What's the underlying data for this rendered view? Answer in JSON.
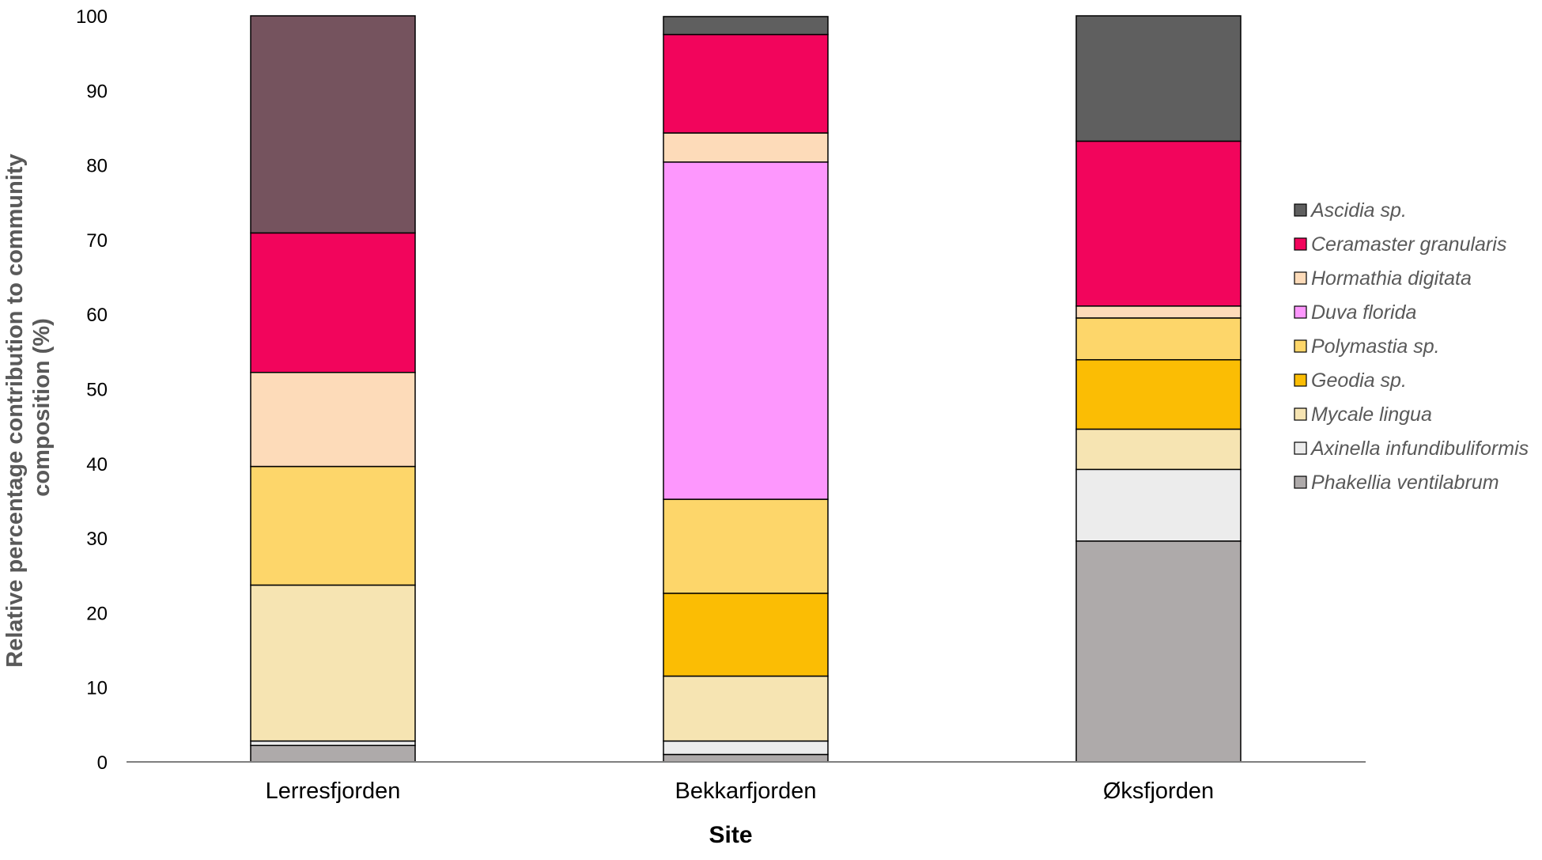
{
  "chart_data": {
    "type": "bar",
    "stacked": true,
    "title": "",
    "xlabel": "Site",
    "ylabel": "Relative percentage contribution to community composition (%)",
    "ylabel_lines": [
      "Relative percentage contribution to community",
      "composition (%)"
    ],
    "ylim": [
      0,
      100
    ],
    "y_ticks": [
      "0",
      "10",
      "20",
      "30",
      "40",
      "50",
      "60",
      "70",
      "80",
      "90",
      "100"
    ],
    "categories": [
      "Lerresfjorden",
      "Bekkarfjorden",
      "Øksfjorden"
    ],
    "grid": false,
    "legend_position": "right",
    "series": [
      {
        "name": "Phakellia ventilabrum",
        "color": "#aeaaaa",
        "values": [
          2.2,
          1.0,
          29.6
        ]
      },
      {
        "name": "Axinella infundibuliformis",
        "color": "#ececec",
        "values": [
          0.6,
          1.8,
          9.6
        ]
      },
      {
        "name": "Mycale lingua",
        "color": "#f6e4b2",
        "values": [
          20.9,
          8.7,
          5.4
        ]
      },
      {
        "name": "Geodia sp.",
        "color": "#fbbd04",
        "values": [
          0.0,
          11.1,
          9.3
        ]
      },
      {
        "name": "Polymastia sp.",
        "color": "#fdd66a",
        "values": [
          15.9,
          12.6,
          5.6
        ]
      },
      {
        "name": "Duva florida",
        "color": "#fd97fd",
        "values": [
          0.0,
          45.2,
          0.0
        ]
      },
      {
        "name": "Hormathia digitata",
        "color": "#fddbb9",
        "values": [
          12.6,
          3.9,
          1.6
        ]
      },
      {
        "name": "Ceramaster granularis",
        "color": "#f2055c",
        "values": [
          18.7,
          13.2,
          22.1
        ]
      },
      {
        "name": "Ascidia sp.",
        "color": "#5f5f5f",
        "values": [
          0.0,
          2.4,
          16.8
        ]
      },
      {
        "name": "",
        "color": "#75535e",
        "values": [
          29.1,
          0.0,
          0.0
        ]
      }
    ]
  }
}
